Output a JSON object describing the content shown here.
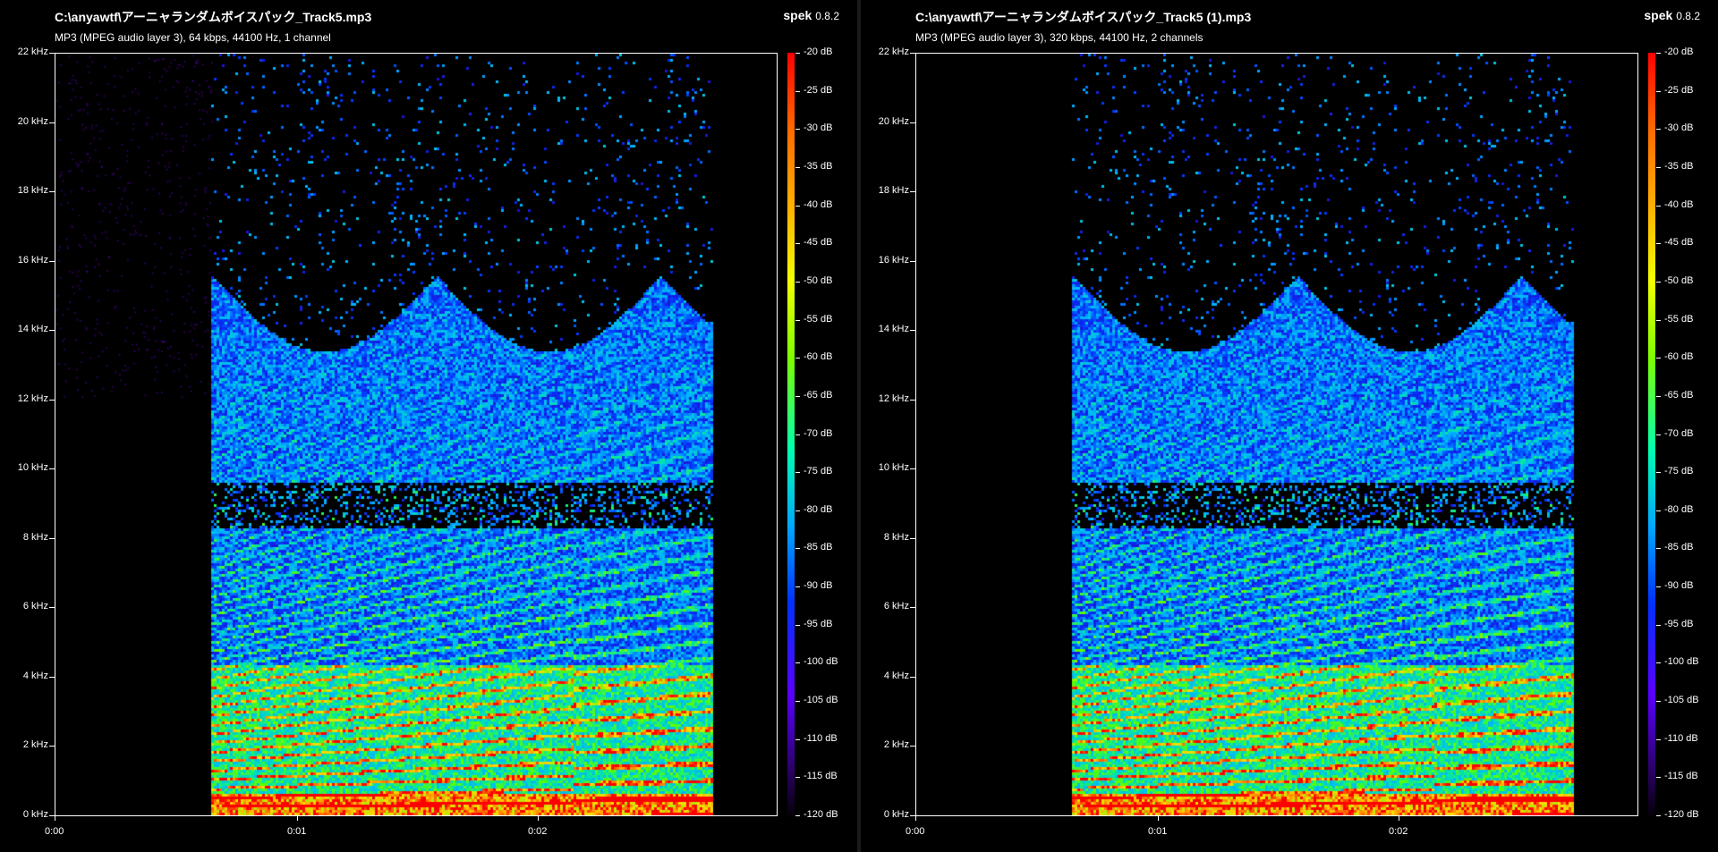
{
  "brand": {
    "name": "spek",
    "version": "0.8.2"
  },
  "panels": [
    {
      "title": "C:\\anyawtf\\アーニャランダムボイスパック_Track5.mp3",
      "subtitle": "MP3 (MPEG audio layer 3), 64 kbps, 44100 Hz, 1 channel"
    },
    {
      "title": "C:\\anyawtf\\アーニャランダムボイスパック_Track5 (1).mp3",
      "subtitle": "MP3 (MPEG audio layer 3), 320 kbps, 44100 Hz, 2 channels"
    }
  ],
  "y_axis": {
    "labels": [
      "22 kHz",
      "20 kHz",
      "18 kHz",
      "16 kHz",
      "14 kHz",
      "12 kHz",
      "10 kHz",
      "8 kHz",
      "6 kHz",
      "4 kHz",
      "2 kHz",
      "0 kHz"
    ]
  },
  "x_axis": {
    "labels": [
      "0:00",
      "0:01",
      "0:02"
    ]
  },
  "colorbar": {
    "labels": [
      "-20 dB",
      "-25 dB",
      "-30 dB",
      "-35 dB",
      "-40 dB",
      "-45 dB",
      "-50 dB",
      "-55 dB",
      "-60 dB",
      "-65 dB",
      "-70 dB",
      "-75 dB",
      "-80 dB",
      "-85 dB",
      "-90 dB",
      "-95 dB",
      "-100 dB",
      "-105 dB",
      "-110 dB",
      "-115 dB",
      "-120 dB"
    ]
  }
}
